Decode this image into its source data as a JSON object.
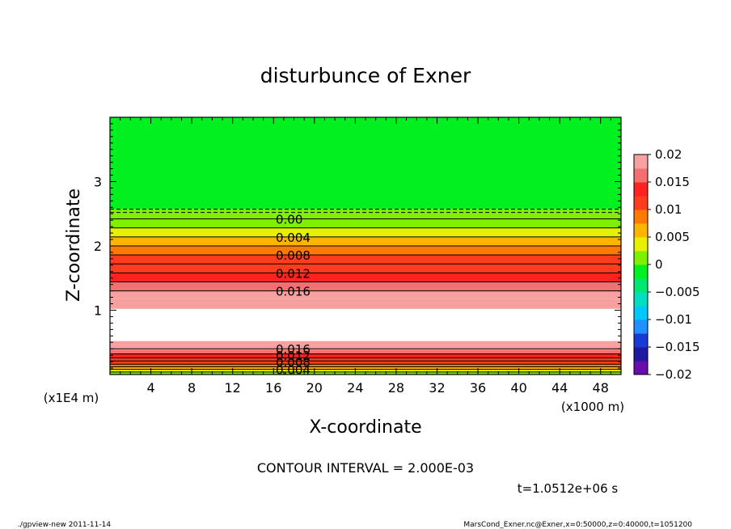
{
  "chart_data": {
    "type": "contour",
    "title": "disturbunce of Exner",
    "xlabel": "X-coordinate",
    "ylabel": "Z-coordinate",
    "x_unit": "(x1000 m)",
    "y_unit": "(x1E4 m)",
    "xlim": [
      0,
      50
    ],
    "ylim": [
      0,
      4
    ],
    "x_ticks": [
      4,
      8,
      12,
      16,
      20,
      24,
      28,
      32,
      36,
      40,
      44,
      48
    ],
    "y_ticks": [
      1,
      2,
      3
    ],
    "contour_interval_text": "CONTOUR INTERVAL = 2.000E-03",
    "time_text": "t=1.0512e+06 s",
    "colorbar": {
      "range": [
        -0.02,
        0.02
      ],
      "tick_values": [
        0.02,
        0.015,
        0.01,
        0.005,
        0,
        -0.005,
        -0.01,
        -0.015,
        -0.02
      ],
      "tick_labels": [
        "0.02",
        "0.015",
        "0.01",
        "0.005",
        "0",
        "−0.005",
        "−0.01",
        "−0.015",
        "−0.02"
      ]
    },
    "bands": [
      {
        "z0": 2.57,
        "z1": 4.0,
        "value": -0.001
      },
      {
        "z0": 2.42,
        "z1": 2.57,
        "value": 0.0005
      },
      {
        "z0": 2.28,
        "z1": 2.42,
        "value": 0.002
      },
      {
        "z0": 2.14,
        "z1": 2.28,
        "value": 0.004
      },
      {
        "z0": 2.0,
        "z1": 2.14,
        "value": 0.006
      },
      {
        "z0": 1.86,
        "z1": 2.0,
        "value": 0.008
      },
      {
        "z0": 1.72,
        "z1": 1.86,
        "value": 0.01
      },
      {
        "z0": 1.58,
        "z1": 1.72,
        "value": 0.012
      },
      {
        "z0": 1.44,
        "z1": 1.58,
        "value": 0.014
      },
      {
        "z0": 1.3,
        "z1": 1.44,
        "value": 0.016
      },
      {
        "z0": 1.18,
        "z1": 1.3,
        "value": 0.018
      },
      {
        "z0": 1.02,
        "z1": 1.18,
        "value": 0.0195
      },
      {
        "z0": 0.52,
        "z1": 1.02,
        "value": null
      },
      {
        "z0": 0.46,
        "z1": 0.52,
        "value": 0.0195
      },
      {
        "z0": 0.38,
        "z1": 0.46,
        "value": 0.018
      },
      {
        "z0": 0.32,
        "z1": 0.38,
        "value": 0.016
      },
      {
        "z0": 0.26,
        "z1": 0.32,
        "value": 0.014
      },
      {
        "z0": 0.21,
        "z1": 0.26,
        "value": 0.012
      },
      {
        "z0": 0.16,
        "z1": 0.21,
        "value": 0.01
      },
      {
        "z0": 0.12,
        "z1": 0.16,
        "value": 0.008
      },
      {
        "z0": 0.08,
        "z1": 0.12,
        "value": 0.006
      },
      {
        "z0": 0.04,
        "z1": 0.08,
        "value": 0.004
      },
      {
        "z0": 0.0,
        "z1": 0.04,
        "value": 0.002
      }
    ],
    "contours_upper": [
      {
        "z": 2.57,
        "value": -0.002,
        "style": "dashed"
      },
      {
        "z": 2.52,
        "value": -0.001,
        "style": "dashed"
      },
      {
        "z": 2.42,
        "value": 0.0,
        "style": "solid"
      },
      {
        "z": 2.28,
        "value": 0.002,
        "style": "solid"
      },
      {
        "z": 2.14,
        "value": 0.004,
        "style": "solid"
      },
      {
        "z": 2.0,
        "value": 0.006,
        "style": "solid"
      },
      {
        "z": 1.86,
        "value": 0.008,
        "style": "solid"
      },
      {
        "z": 1.72,
        "value": 0.01,
        "style": "solid"
      },
      {
        "z": 1.58,
        "value": 0.012,
        "style": "solid"
      },
      {
        "z": 1.44,
        "value": 0.014,
        "style": "solid"
      },
      {
        "z": 1.3,
        "value": 0.016,
        "style": "solid"
      }
    ],
    "contours_lower": [
      0.4,
      0.32,
      0.26,
      0.21,
      0.16,
      0.12,
      0.08,
      0.04
    ],
    "contour_labels": [
      {
        "text": "0.00",
        "z": 2.42
      },
      {
        "text": "0.004",
        "z": 2.14
      },
      {
        "text": "0.008",
        "z": 1.86
      },
      {
        "text": "0.012",
        "z": 1.58
      },
      {
        "text": "0.016",
        "z": 1.3
      },
      {
        "text": "0.016",
        "z": 0.4
      },
      {
        "text": "0.012",
        "z": 0.3
      },
      {
        "text": "0.008",
        "z": 0.2
      },
      {
        "text": "0.004",
        "z": 0.08
      }
    ]
  },
  "footer": {
    "left": "./gpview-new  2011-11-14",
    "right": "MarsCond_Exner.nc@Exner,x=0:50000,z=0:40000,t=1051200"
  }
}
